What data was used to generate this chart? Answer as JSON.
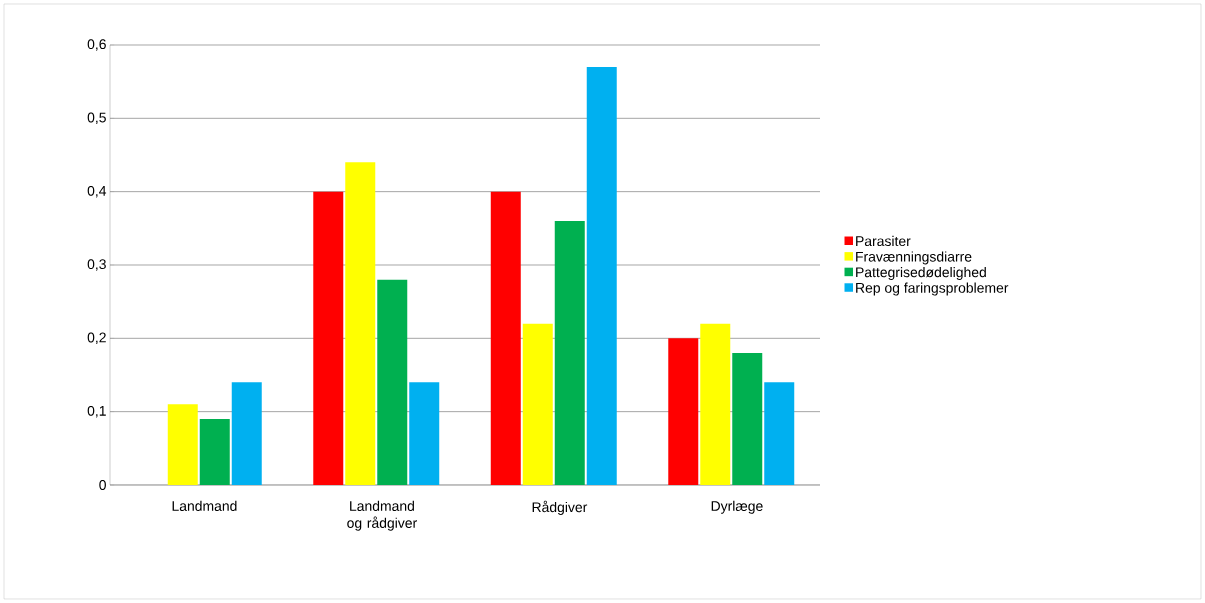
{
  "chart_data": {
    "type": "bar",
    "categories": [
      "Landmand",
      "Landmand og rådgiver",
      "Rådgiver",
      "Dyrlæge"
    ],
    "series": [
      {
        "name": "Parasiter",
        "color": "#ff0000",
        "values": [
          0,
          0.4,
          0.4,
          0.2
        ]
      },
      {
        "name": "Fravænningsdiarre",
        "color": "#ffff00",
        "values": [
          0.11,
          0.44,
          0.22,
          0.22
        ]
      },
      {
        "name": "Pattegrisedødelighed",
        "color": "#00b050",
        "values": [
          0.09,
          0.28,
          0.36,
          0.18
        ]
      },
      {
        "name": "Rep og faringsproblemer",
        "color": "#00b0f0",
        "values": [
          0.14,
          0.14,
          0.57,
          0.14
        ]
      }
    ],
    "ylim": [
      0,
      0.6
    ],
    "yticks": [
      {
        "value": 0,
        "label": "0"
      },
      {
        "value": 0.1,
        "label": "0,1"
      },
      {
        "value": 0.2,
        "label": "0,2"
      },
      {
        "value": 0.3,
        "label": "0,3"
      },
      {
        "value": 0.4,
        "label": "0,4"
      },
      {
        "value": 0.5,
        "label": "0,5"
      },
      {
        "value": 0.6,
        "label": "0,6"
      }
    ],
    "grid": "y",
    "legend": "right"
  }
}
